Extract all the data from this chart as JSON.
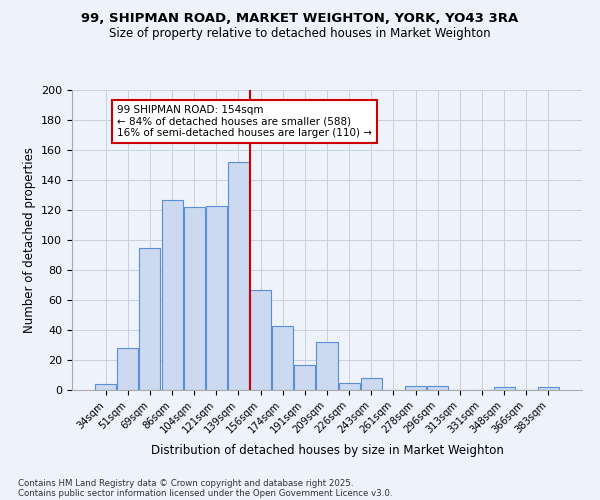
{
  "title": "99, SHIPMAN ROAD, MARKET WEIGHTON, YORK, YO43 3RA",
  "subtitle": "Size of property relative to detached houses in Market Weighton",
  "xlabel": "Distribution of detached houses by size in Market Weighton",
  "ylabel": "Number of detached properties",
  "bar_labels": [
    "34sqm",
    "51sqm",
    "69sqm",
    "86sqm",
    "104sqm",
    "121sqm",
    "139sqm",
    "156sqm",
    "174sqm",
    "191sqm",
    "209sqm",
    "226sqm",
    "243sqm",
    "261sqm",
    "278sqm",
    "296sqm",
    "313sqm",
    "331sqm",
    "348sqm",
    "366sqm",
    "383sqm"
  ],
  "bar_values": [
    4,
    28,
    95,
    127,
    122,
    123,
    152,
    67,
    43,
    17,
    32,
    5,
    8,
    0,
    3,
    3,
    0,
    0,
    2,
    0,
    2
  ],
  "bar_color": "#ccd9f0",
  "bar_edge_color": "#5b8fd4",
  "vline_index": 7,
  "vline_color": "#cc0000",
  "annotation_text": "99 SHIPMAN ROAD: 154sqm\n← 84% of detached houses are smaller (588)\n16% of semi-detached houses are larger (110) →",
  "annotation_box_color": "#ffffff",
  "annotation_box_edge": "#cc0000",
  "footnote1": "Contains HM Land Registry data © Crown copyright and database right 2025.",
  "footnote2": "Contains public sector information licensed under the Open Government Licence v3.0.",
  "bg_color": "#eef2fb",
  "ylim": [
    0,
    200
  ],
  "yticks": [
    0,
    20,
    40,
    60,
    80,
    100,
    120,
    140,
    160,
    180,
    200
  ]
}
